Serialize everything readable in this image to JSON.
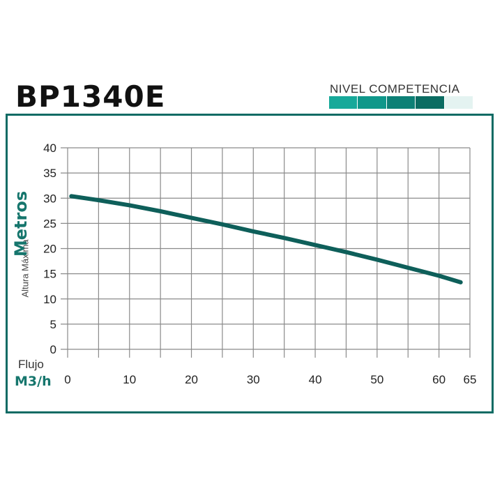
{
  "header": {
    "model": "BP1340E",
    "level_label": "NIVEL COMPETENCIA",
    "level_segments": [
      "#17a99a",
      "#0f978a",
      "#0d8076",
      "#0b6c62",
      "#e4f3f1"
    ]
  },
  "colors": {
    "frame": "#0e6b64",
    "curve": "#0e5f5a",
    "grid": "#8a8a8a"
  },
  "chart_data": {
    "type": "line",
    "title": "",
    "xlabel": "Flujo",
    "xunit": "M3/h",
    "ylabel": "Altura Máxima",
    "yunit": "Metros",
    "xlim": [
      0,
      65
    ],
    "ylim": [
      0,
      40
    ],
    "xticks": [
      0,
      10,
      20,
      30,
      40,
      50,
      60,
      65
    ],
    "yticks": [
      0,
      5,
      10,
      15,
      20,
      25,
      30,
      35,
      40
    ],
    "x_gridlines": [
      0,
      5,
      10,
      15,
      20,
      25,
      30,
      35,
      40,
      45,
      50,
      55,
      60,
      65
    ],
    "grid": true,
    "series": [
      {
        "x": [
          0.6,
          5,
          10,
          15,
          20,
          25,
          30,
          35,
          40,
          45,
          50,
          55,
          60,
          63.5
        ],
        "y": [
          30.4,
          29.6,
          28.6,
          27.4,
          26.1,
          24.8,
          23.4,
          22.1,
          20.7,
          19.3,
          17.8,
          16.2,
          14.6,
          13.3
        ]
      }
    ]
  }
}
